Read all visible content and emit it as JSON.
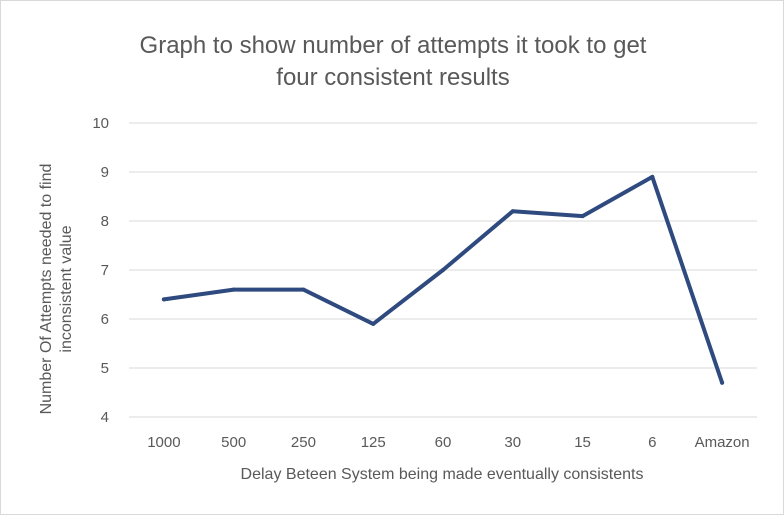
{
  "chart_data": {
    "type": "line",
    "title_lines": [
      "Graph to show  number of attempts it took to get",
      "four consistent results"
    ],
    "xlabel": "Delay Beteen System being made eventually consistents",
    "ylabel_lines": [
      "Number Of Attempts needed to find",
      "inconsistent value"
    ],
    "categories": [
      "1000",
      "500",
      "250",
      "125",
      "60",
      "30",
      "15",
      "6",
      "Amazon"
    ],
    "series": [
      {
        "values": [
          6.4,
          6.6,
          6.6,
          5.9,
          7.0,
          8.2,
          8.1,
          8.9,
          4.7
        ]
      }
    ],
    "ylim": [
      4,
      10
    ],
    "yticks": [
      "4",
      "5",
      "6",
      "7",
      "8",
      "9",
      "10"
    ],
    "grid": true,
    "legend": "none",
    "line_color": "#2f4a7f"
  }
}
